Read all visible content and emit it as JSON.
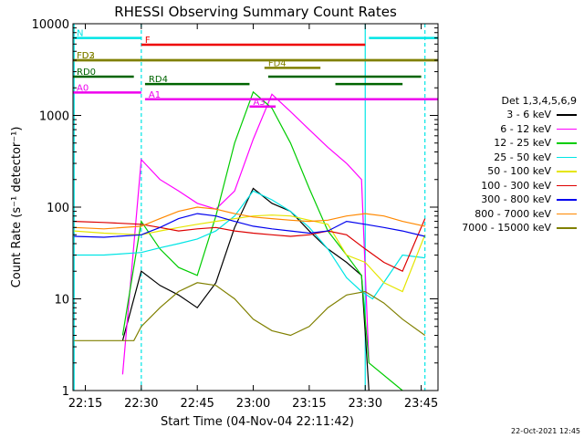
{
  "chart_data": {
    "type": "line",
    "title": "RHESSI Observing Summary Count Rates",
    "xlabel": "Start Time (04-Nov-04 22:11:42)",
    "ylabel": "Count Rate (s⁻¹ detector⁻¹)",
    "yscale": "log",
    "ylim": [
      1,
      10000
    ],
    "xlim": [
      "22:11:42",
      "23:49:30"
    ],
    "x_ticks": [
      "22:15",
      "22:30",
      "22:45",
      "23:00",
      "23:15",
      "23:30",
      "23:45"
    ],
    "y_ticks": [
      "1",
      "10",
      "100",
      "1000",
      "10000"
    ],
    "timestamp": "22-Oct-2021 12:45",
    "legend_title": "Det 1,3,4,5,6,9",
    "legend_position": "right",
    "series": [
      {
        "name": "3 - 6 keV",
        "color": "#000000",
        "x": [
          "22:25",
          "22:30",
          "22:35",
          "22:40",
          "22:45",
          "22:50",
          "22:55",
          "23:00",
          "23:05",
          "23:10",
          "23:15",
          "23:20",
          "23:25",
          "23:29",
          "23:31"
        ],
        "y": [
          3.5,
          20,
          14,
          11,
          8,
          15,
          60,
          160,
          110,
          90,
          55,
          35,
          25,
          18,
          1
        ]
      },
      {
        "name": "6 - 12 keV",
        "color": "#ff00ff",
        "x": [
          "22:25",
          "22:30",
          "22:35",
          "22:40",
          "22:45",
          "22:50",
          "22:55",
          "23:00",
          "23:05",
          "23:10",
          "23:15",
          "23:20",
          "23:25",
          "23:29",
          "23:31"
        ],
        "y": [
          1.5,
          330,
          200,
          150,
          110,
          95,
          150,
          550,
          1700,
          1100,
          700,
          450,
          300,
          200,
          2
        ]
      },
      {
        "name": "12 - 25 keV",
        "color": "#00cc00",
        "x": [
          "22:25",
          "22:30",
          "22:35",
          "22:40",
          "22:45",
          "22:50",
          "22:55",
          "23:00",
          "23:05",
          "23:10",
          "23:15",
          "23:20",
          "23:25",
          "23:29",
          "23:31",
          "23:40"
        ],
        "y": [
          4,
          70,
          35,
          22,
          18,
          80,
          500,
          1800,
          1200,
          500,
          160,
          55,
          30,
          18,
          2,
          1
        ]
      },
      {
        "name": "25 - 50 keV",
        "color": "#00e5e5",
        "x": [
          "22:12",
          "22:20",
          "22:30",
          "22:35",
          "22:40",
          "22:45",
          "22:50",
          "22:55",
          "23:00",
          "23:05",
          "23:10",
          "23:15",
          "23:20",
          "23:25",
          "23:29",
          "23:32",
          "23:40",
          "23:46"
        ],
        "y": [
          30,
          30,
          32,
          36,
          40,
          45,
          55,
          80,
          150,
          120,
          90,
          60,
          35,
          17,
          12,
          10,
          30,
          28
        ]
      },
      {
        "name": "50 - 100 keV",
        "color": "#e5e500",
        "x": [
          "22:12",
          "22:20",
          "22:30",
          "22:35",
          "22:40",
          "22:45",
          "22:50",
          "22:55",
          "23:00",
          "23:05",
          "23:10",
          "23:15",
          "23:20",
          "23:25",
          "23:30",
          "23:35",
          "23:40",
          "23:46"
        ],
        "y": [
          55,
          52,
          50,
          55,
          60,
          65,
          70,
          75,
          80,
          82,
          80,
          72,
          65,
          30,
          25,
          15,
          12,
          50
        ]
      },
      {
        "name": "100 - 300 keV",
        "color": "#dd0000",
        "x": [
          "22:12",
          "22:20",
          "22:30",
          "22:35",
          "22:40",
          "22:45",
          "22:50",
          "22:55",
          "23:00",
          "23:05",
          "23:10",
          "23:15",
          "23:20",
          "23:25",
          "23:30",
          "23:35",
          "23:40",
          "23:46"
        ],
        "y": [
          70,
          68,
          65,
          60,
          55,
          58,
          60,
          55,
          52,
          50,
          48,
          50,
          55,
          50,
          35,
          25,
          20,
          75
        ]
      },
      {
        "name": "300 - 800 keV",
        "color": "#0000ee",
        "x": [
          "22:12",
          "22:20",
          "22:30",
          "22:35",
          "22:40",
          "22:45",
          "22:50",
          "22:55",
          "23:00",
          "23:05",
          "23:10",
          "23:15",
          "23:20",
          "23:25",
          "23:30",
          "23:35",
          "23:40",
          "23:46"
        ],
        "y": [
          48,
          47,
          50,
          60,
          75,
          85,
          80,
          70,
          62,
          58,
          55,
          52,
          55,
          70,
          65,
          60,
          55,
          48
        ]
      },
      {
        "name": "800 - 7000 keV",
        "color": "#ff8800",
        "x": [
          "22:12",
          "22:20",
          "22:30",
          "22:35",
          "22:40",
          "22:45",
          "22:50",
          "22:55",
          "23:00",
          "23:05",
          "23:10",
          "23:15",
          "23:20",
          "23:25",
          "23:30",
          "23:35",
          "23:40",
          "23:46"
        ],
        "y": [
          60,
          58,
          62,
          75,
          90,
          100,
          95,
          85,
          78,
          75,
          72,
          70,
          72,
          80,
          85,
          80,
          70,
          62
        ]
      },
      {
        "name": "7000 - 15000 keV",
        "color": "#808000",
        "x": [
          "22:12",
          "22:20",
          "22:28",
          "22:30",
          "22:35",
          "22:40",
          "22:45",
          "22:50",
          "22:55",
          "23:00",
          "23:05",
          "23:10",
          "23:15",
          "23:20",
          "23:25",
          "23:30",
          "23:35",
          "23:40",
          "23:46"
        ],
        "y": [
          3.5,
          3.5,
          3.5,
          5,
          8,
          12,
          15,
          14,
          10,
          6,
          4.5,
          4,
          5,
          8,
          11,
          12,
          9,
          6,
          4
        ]
      }
    ],
    "state_bars": [
      {
        "label": "N",
        "color": "#00e5e5",
        "y": 7000,
        "start": "22:11:42",
        "end": "22:30"
      },
      {
        "label": "",
        "color": "#00e5e5",
        "y": 7000,
        "start": "23:31",
        "end": "23:49:30"
      },
      {
        "label": "F",
        "color": "#ee0000",
        "y": 5900,
        "start": "22:30",
        "end": "23:30"
      },
      {
        "label": "FD2",
        "color": "#808000",
        "y": 4000,
        "start": "22:11:42",
        "end": "23:49:30"
      },
      {
        "label": "FD3",
        "color": "#808000",
        "y": 4000,
        "start": "22:11:42",
        "end": "23:49:30"
      },
      {
        "label": "FD4",
        "color": "#808000",
        "y": 3300,
        "start": "23:03",
        "end": "23:18"
      },
      {
        "label": "RD0",
        "color": "#006400",
        "y": 2650,
        "start": "22:11:42",
        "end": "22:28"
      },
      {
        "label": "",
        "color": "#006400",
        "y": 2650,
        "start": "23:04",
        "end": "23:45"
      },
      {
        "label": "RD4",
        "color": "#006400",
        "y": 2200,
        "start": "22:31",
        "end": "22:59"
      },
      {
        "label": "",
        "color": "#006400",
        "y": 2200,
        "start": "23:22",
        "end": "23:40"
      },
      {
        "label": "A0",
        "color": "#ee00ee",
        "y": 1780,
        "start": "22:11:42",
        "end": "22:30"
      },
      {
        "label": "A1",
        "color": "#ee00ee",
        "y": 1500,
        "start": "22:31",
        "end": "23:49:30"
      },
      {
        "label": "A3",
        "color": "#ee00ee",
        "y": 1250,
        "start": "22:59",
        "end": "23:06"
      }
    ],
    "vertical_markers": [
      {
        "x": "22:12",
        "color": "#00e5e5",
        "style": "solid"
      },
      {
        "x": "22:30",
        "color": "#00e5e5",
        "style": "dashed"
      },
      {
        "x": "23:30",
        "color": "#00e5e5",
        "style": "solid"
      },
      {
        "x": "23:46",
        "color": "#00e5e5",
        "style": "dashed"
      }
    ]
  }
}
